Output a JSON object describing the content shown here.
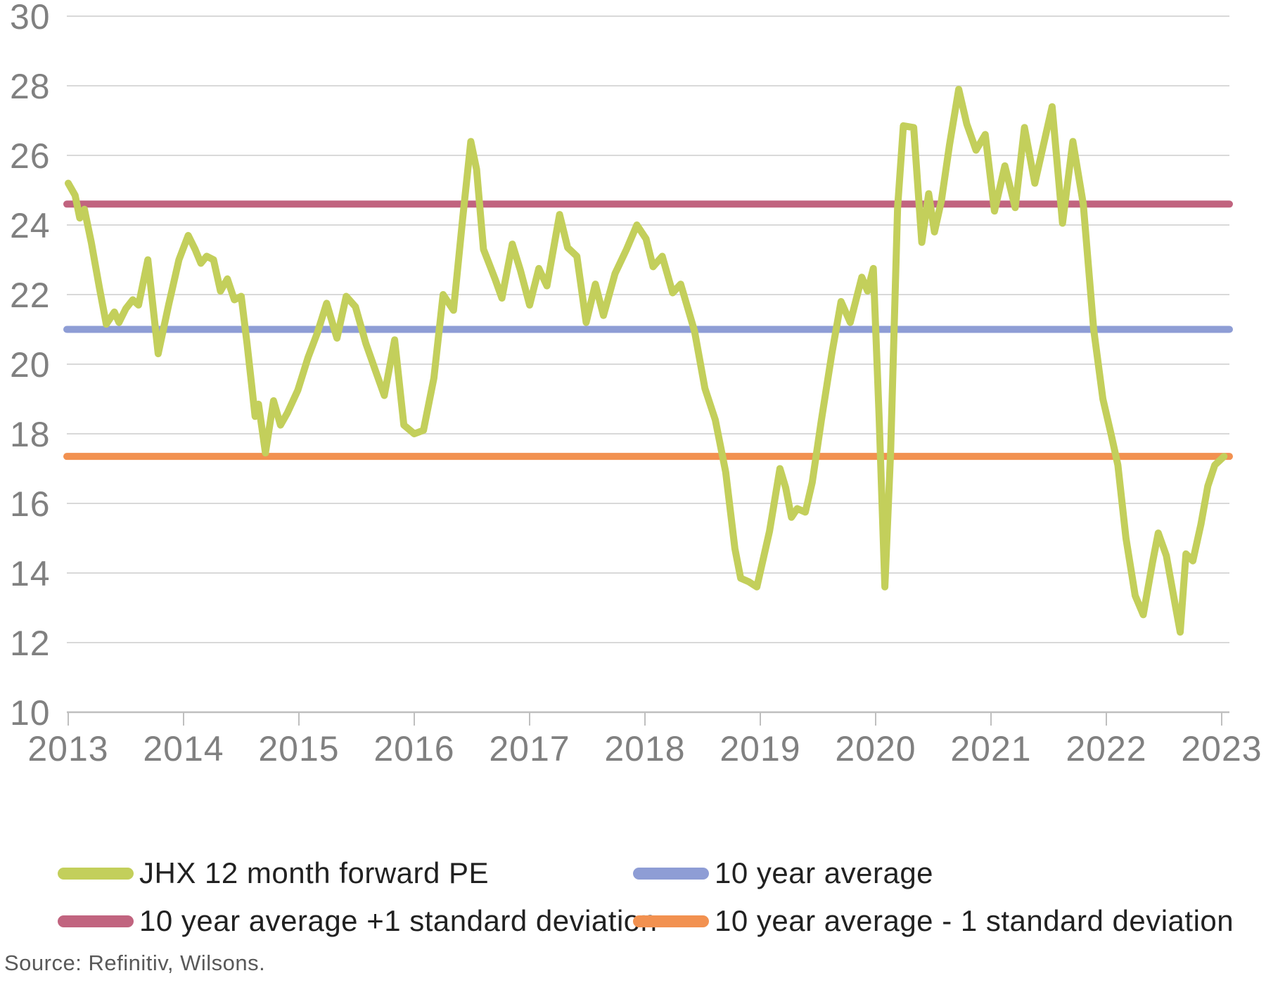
{
  "source_note": "Source: Refinitiv, Wilsons.",
  "colors": {
    "jhx_line": "#c3cf5b",
    "average_line": "#8e9dd5",
    "plus1sd_line": "#c1647f",
    "minus1sd_line": "#f29150",
    "gridline": "#d9d9d9",
    "axis_line": "#bfbfbf",
    "tick_text": "#808080",
    "legend_text": "#212121",
    "source_text": "#595959"
  },
  "chart_data": {
    "type": "line",
    "title": "",
    "xlabel": "",
    "ylabel": "",
    "xlim": [
      2013,
      2023.1
    ],
    "ylim": [
      10,
      30
    ],
    "grid": "horizontal",
    "legend_position": "bottom",
    "y_ticks": [
      30,
      28,
      26,
      24,
      22,
      20,
      18,
      16,
      14,
      12,
      10
    ],
    "x_ticks": [
      2013,
      2014,
      2015,
      2016,
      2017,
      2018,
      2019,
      2020,
      2021,
      2022,
      2023
    ],
    "series": [
      {
        "id": "jhx",
        "name": "JHX 12 month forward PE",
        "color": "#c3cf5b",
        "points": [
          [
            2013.0,
            25.2
          ],
          [
            2013.06,
            24.85
          ],
          [
            2013.1,
            24.2
          ],
          [
            2013.14,
            24.45
          ],
          [
            2013.2,
            23.5
          ],
          [
            2013.27,
            22.2
          ],
          [
            2013.33,
            21.15
          ],
          [
            2013.4,
            21.5
          ],
          [
            2013.44,
            21.2
          ],
          [
            2013.5,
            21.6
          ],
          [
            2013.56,
            21.85
          ],
          [
            2013.61,
            21.7
          ],
          [
            2013.69,
            23.0
          ],
          [
            2013.78,
            20.3
          ],
          [
            2013.87,
            21.7
          ],
          [
            2013.96,
            23.0
          ],
          [
            2014.04,
            23.7
          ],
          [
            2014.1,
            23.3
          ],
          [
            2014.15,
            22.9
          ],
          [
            2014.2,
            23.1
          ],
          [
            2014.26,
            23.0
          ],
          [
            2014.32,
            22.1
          ],
          [
            2014.38,
            22.45
          ],
          [
            2014.44,
            21.85
          ],
          [
            2014.5,
            21.95
          ],
          [
            2014.55,
            20.6
          ],
          [
            2014.59,
            19.4
          ],
          [
            2014.62,
            18.5
          ],
          [
            2014.65,
            18.85
          ],
          [
            2014.71,
            17.45
          ],
          [
            2014.78,
            18.95
          ],
          [
            2014.84,
            18.25
          ],
          [
            2014.9,
            18.6
          ],
          [
            2014.99,
            19.25
          ],
          [
            2015.08,
            20.2
          ],
          [
            2015.16,
            20.9
          ],
          [
            2015.24,
            21.75
          ],
          [
            2015.33,
            20.75
          ],
          [
            2015.41,
            21.95
          ],
          [
            2015.49,
            21.65
          ],
          [
            2015.58,
            20.6
          ],
          [
            2015.66,
            19.85
          ],
          [
            2015.74,
            19.1
          ],
          [
            2015.83,
            20.7
          ],
          [
            2015.91,
            18.25
          ],
          [
            2016.0,
            18.0
          ],
          [
            2016.08,
            18.1
          ],
          [
            2016.17,
            19.6
          ],
          [
            2016.25,
            22.0
          ],
          [
            2016.34,
            21.55
          ],
          [
            2016.42,
            24.2
          ],
          [
            2016.49,
            26.4
          ],
          [
            2016.54,
            25.6
          ],
          [
            2016.6,
            23.3
          ],
          [
            2016.63,
            23.05
          ],
          [
            2016.7,
            22.45
          ],
          [
            2016.76,
            21.9
          ],
          [
            2016.85,
            23.45
          ],
          [
            2016.92,
            22.7
          ],
          [
            2017.0,
            21.7
          ],
          [
            2017.08,
            22.75
          ],
          [
            2017.15,
            22.25
          ],
          [
            2017.26,
            24.3
          ],
          [
            2017.33,
            23.35
          ],
          [
            2017.41,
            23.1
          ],
          [
            2017.49,
            21.2
          ],
          [
            2017.57,
            22.3
          ],
          [
            2017.64,
            21.4
          ],
          [
            2017.74,
            22.6
          ],
          [
            2017.84,
            23.3
          ],
          [
            2017.93,
            24.0
          ],
          [
            2018.01,
            23.6
          ],
          [
            2018.07,
            22.8
          ],
          [
            2018.15,
            23.1
          ],
          [
            2018.24,
            22.05
          ],
          [
            2018.31,
            22.3
          ],
          [
            2018.43,
            20.95
          ],
          [
            2018.52,
            19.3
          ],
          [
            2018.61,
            18.4
          ],
          [
            2018.7,
            16.9
          ],
          [
            2018.78,
            14.7
          ],
          [
            2018.83,
            13.85
          ],
          [
            2018.9,
            13.75
          ],
          [
            2018.97,
            13.6
          ],
          [
            2019.08,
            15.2
          ],
          [
            2019.17,
            17.0
          ],
          [
            2019.22,
            16.45
          ],
          [
            2019.27,
            15.6
          ],
          [
            2019.32,
            15.85
          ],
          [
            2019.39,
            15.75
          ],
          [
            2019.45,
            16.6
          ],
          [
            2019.53,
            18.4
          ],
          [
            2019.62,
            20.3
          ],
          [
            2019.7,
            21.8
          ],
          [
            2019.78,
            21.2
          ],
          [
            2019.88,
            22.5
          ],
          [
            2019.93,
            22.1
          ],
          [
            2019.98,
            22.75
          ],
          [
            2020.03,
            18.5
          ],
          [
            2020.08,
            13.6
          ],
          [
            2020.13,
            17.5
          ],
          [
            2020.19,
            24.5
          ],
          [
            2020.24,
            26.85
          ],
          [
            2020.33,
            26.8
          ],
          [
            2020.4,
            23.5
          ],
          [
            2020.46,
            24.9
          ],
          [
            2020.51,
            23.8
          ],
          [
            2020.57,
            24.7
          ],
          [
            2020.64,
            26.3
          ],
          [
            2020.72,
            27.9
          ],
          [
            2020.79,
            26.9
          ],
          [
            2020.87,
            26.15
          ],
          [
            2020.95,
            26.6
          ],
          [
            2021.03,
            24.4
          ],
          [
            2021.12,
            25.7
          ],
          [
            2021.21,
            24.5
          ],
          [
            2021.29,
            26.8
          ],
          [
            2021.38,
            25.2
          ],
          [
            2021.53,
            27.4
          ],
          [
            2021.62,
            24.05
          ],
          [
            2021.71,
            26.4
          ],
          [
            2021.8,
            24.6
          ],
          [
            2021.89,
            21.0
          ],
          [
            2021.97,
            19.0
          ],
          [
            2022.04,
            18.0
          ],
          [
            2022.1,
            17.1
          ],
          [
            2022.17,
            15.0
          ],
          [
            2022.25,
            13.35
          ],
          [
            2022.32,
            12.8
          ],
          [
            2022.4,
            14.3
          ],
          [
            2022.45,
            15.15
          ],
          [
            2022.52,
            14.5
          ],
          [
            2022.58,
            13.4
          ],
          [
            2022.64,
            12.3
          ],
          [
            2022.69,
            14.55
          ],
          [
            2022.75,
            14.35
          ],
          [
            2022.82,
            15.4
          ],
          [
            2022.88,
            16.5
          ],
          [
            2022.94,
            17.1
          ],
          [
            2023.02,
            17.35
          ]
        ]
      },
      {
        "id": "avg",
        "name": "10 year average",
        "color": "#8e9dd5",
        "value": 21.0
      },
      {
        "id": "plus1sd",
        "name": "10 year average +1 standard deviation",
        "color": "#c1647f",
        "value": 24.6
      },
      {
        "id": "minus1sd",
        "name": "10 year average - 1 standard deviation",
        "color": "#f29150",
        "value": 17.35
      }
    ]
  }
}
